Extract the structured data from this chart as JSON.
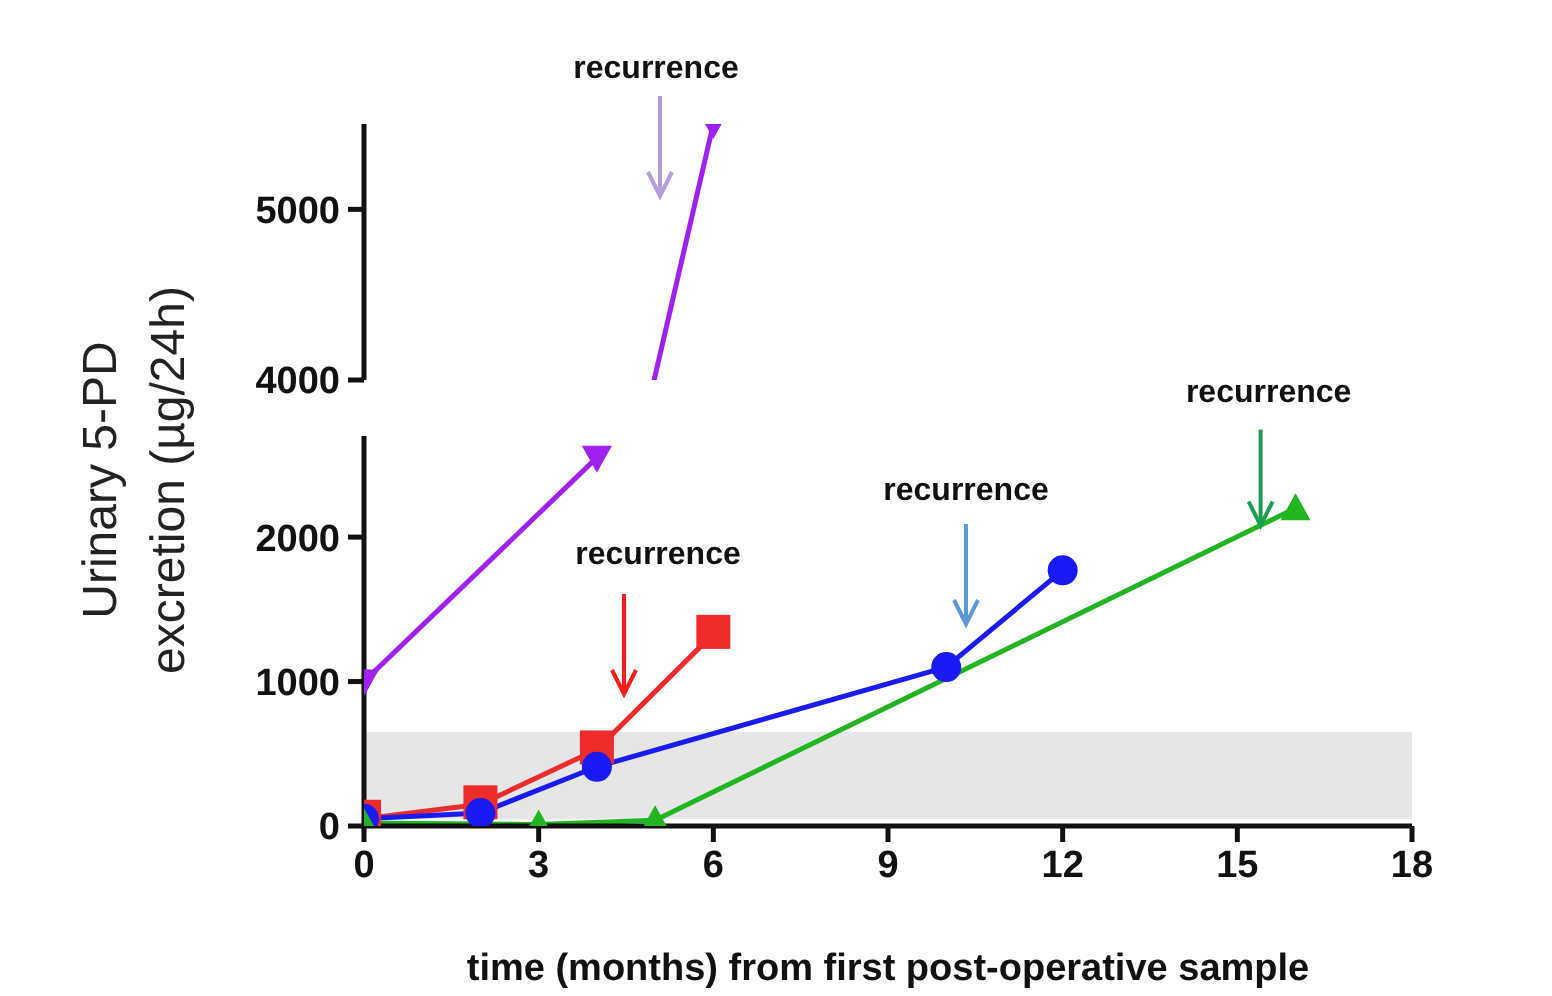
{
  "chart_data": [
    {
      "type": "line",
      "xlim": [
        0,
        18
      ],
      "ylim": [
        4000,
        5500
      ],
      "yticks": [
        4000,
        5000
      ],
      "tick_labels": "y",
      "series": [
        {
          "color": "#a020f0",
          "marker": "triangle-down",
          "x": [
            6
          ],
          "values": [
            5500
          ]
        }
      ],
      "annotations": [
        "recurrence"
      ]
    },
    {
      "type": "line",
      "xlabel": "time (months) from first post-operative sample",
      "ylabel": "Urinary 5-PD excretion (µg/24h)",
      "xlim": [
        0,
        18
      ],
      "xticks": [
        0,
        3,
        6,
        9,
        12,
        15,
        18
      ],
      "ylim": [
        0,
        2700
      ],
      "yticks": [
        0,
        1000,
        2000
      ],
      "bands": [
        {
          "axis": "y",
          "from": 50,
          "to": 650,
          "color": "#e6e6e6"
        }
      ],
      "series": [
        {
          "color": "#a020f0",
          "marker": "triangle-down",
          "x": [
            0,
            4
          ],
          "values": [
            1000,
            2550
          ]
        },
        {
          "color": "#ee2b2b",
          "marker": "square",
          "x": [
            0,
            2,
            4,
            6
          ],
          "values": [
            50,
            150,
            530,
            1330
          ]
        },
        {
          "color": "#1a1af5",
          "marker": "circle",
          "x": [
            0,
            2,
            4,
            10,
            12
          ],
          "values": [
            50,
            90,
            410,
            1100,
            1770
          ]
        },
        {
          "color": "#22b522",
          "marker": "triangle",
          "x": [
            0,
            3,
            5,
            16
          ],
          "values": [
            20,
            10,
            40,
            2200
          ]
        }
      ],
      "annotations": [
        "recurrence",
        "recurrence",
        {
          "text": "recurrence",
          "x": 15.4,
          "y": 2080
        }
      ]
    }
  ]
}
